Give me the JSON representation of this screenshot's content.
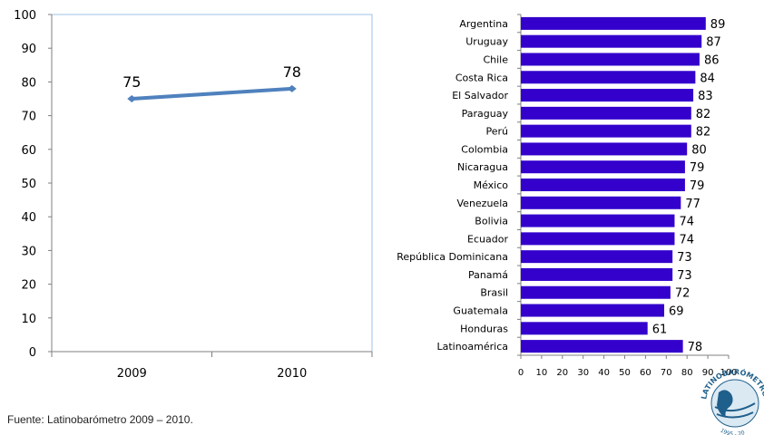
{
  "source": "Fuente: Latinobarómetro 2009 – 2010.",
  "logo": {
    "text": "LATINOBARÓMETRO",
    "years": "1995 - 20"
  },
  "colors": {
    "line": "#4f81bd",
    "bar": "#3300cc",
    "plot_border": "#9dc3e6"
  },
  "chart_data": [
    {
      "type": "line",
      "x": [
        "2009",
        "2010"
      ],
      "series": [
        {
          "values": [
            75,
            78
          ]
        }
      ],
      "ylim": [
        0,
        100
      ],
      "yticks": [
        "0",
        "10",
        "20",
        "30",
        "40",
        "50",
        "60",
        "70",
        "80",
        "90",
        "100"
      ],
      "data_labels": [
        "75",
        "78"
      ],
      "grid": false
    },
    {
      "type": "bar",
      "orientation": "horizontal",
      "categories": [
        "Argentina",
        "Uruguay",
        "Chile",
        "Costa Rica",
        "El Salvador",
        "Paraguay",
        "Perú",
        "Colombia",
        "Nicaragua",
        "México",
        "Venezuela",
        "Bolivia",
        "Ecuador",
        "República Dominicana",
        "Panamá",
        "Brasil",
        "Guatemala",
        "Honduras",
        "Latinoamérica"
      ],
      "values": [
        89,
        87,
        86,
        84,
        83,
        82,
        82,
        80,
        79,
        79,
        77,
        74,
        74,
        73,
        73,
        72,
        69,
        61,
        78
      ],
      "xlim": [
        0,
        100
      ],
      "xticks": [
        "0",
        "10",
        "20",
        "30",
        "40",
        "50",
        "60",
        "70",
        "80",
        "90",
        "100"
      ],
      "grid": false
    }
  ]
}
